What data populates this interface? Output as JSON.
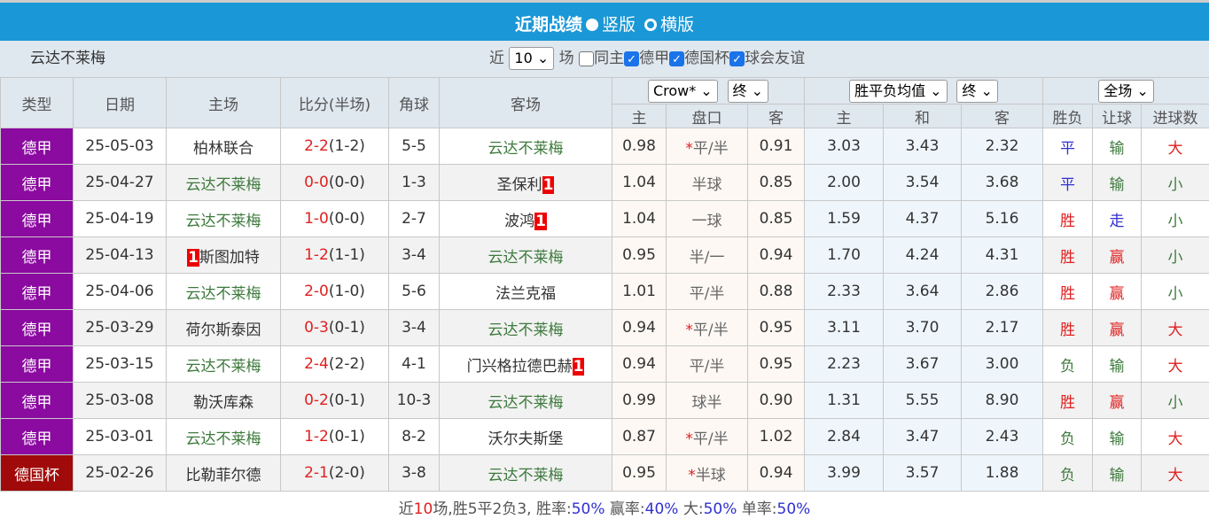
{
  "header": {
    "title": "近期战绩",
    "opt1": "竖版",
    "opt2": "横版"
  },
  "filter": {
    "team": "云达不莱梅",
    "near": "近",
    "count": "10",
    "unit": "场",
    "same_home": "同主",
    "leagues": [
      "德甲",
      "德国杯",
      "球会友谊"
    ]
  },
  "columns": {
    "type": "类型",
    "date": "日期",
    "home": "主场",
    "score": "比分(半场)",
    "corner": "角球",
    "away": "客场",
    "company": "Crow*",
    "final1": "终",
    "eu_sel": "胜平负均值",
    "final2": "终",
    "period": "全场",
    "ah_sub": [
      "主",
      "盘口",
      "客"
    ],
    "eu_sub": [
      "主",
      "和",
      "客"
    ],
    "res_sub": [
      "胜负",
      "让球",
      "进球数"
    ]
  },
  "rows": [
    {
      "type": "德甲",
      "date": "25-05-03",
      "home": "柏林联合",
      "hg": false,
      "hr": "",
      "ft": "2-2",
      "ht": "(1-2)",
      "corner": "5-5",
      "away": "云达不莱梅",
      "ag": true,
      "ar": "",
      "ah": [
        "0.98",
        "*",
        "平/半",
        "0.91"
      ],
      "eu": [
        "3.03",
        "3.43",
        "2.32"
      ],
      "res": [
        "平",
        "输",
        "大"
      ]
    },
    {
      "type": "德甲",
      "date": "25-04-27",
      "home": "云达不莱梅",
      "hg": true,
      "hr": "",
      "ft": "0-0",
      "ht": "(0-0)",
      "corner": "1-3",
      "away": "圣保利",
      "ag": false,
      "ar": "1",
      "ah": [
        "1.04",
        "",
        "半球",
        "0.85"
      ],
      "eu": [
        "2.00",
        "3.54",
        "3.68"
      ],
      "res": [
        "平",
        "输",
        "小"
      ]
    },
    {
      "type": "德甲",
      "date": "25-04-19",
      "home": "云达不莱梅",
      "hg": true,
      "hr": "",
      "ft": "1-0",
      "ht": "(0-0)",
      "corner": "2-7",
      "away": "波鸿",
      "ag": false,
      "ar": "1",
      "ah": [
        "1.04",
        "",
        "一球",
        "0.85"
      ],
      "eu": [
        "1.59",
        "4.37",
        "5.16"
      ],
      "res": [
        "胜",
        "走",
        "小"
      ]
    },
    {
      "type": "德甲",
      "date": "25-04-13",
      "home": "斯图加特",
      "hg": false,
      "hr": "1",
      "ft": "1-2",
      "ht": "(1-1)",
      "corner": "3-4",
      "away": "云达不莱梅",
      "ag": true,
      "ar": "",
      "ah": [
        "0.95",
        "",
        "半/一",
        "0.94"
      ],
      "eu": [
        "1.70",
        "4.24",
        "4.31"
      ],
      "res": [
        "胜",
        "赢",
        "小"
      ]
    },
    {
      "type": "德甲",
      "date": "25-04-06",
      "home": "云达不莱梅",
      "hg": true,
      "hr": "",
      "ft": "2-0",
      "ht": "(1-0)",
      "corner": "5-6",
      "away": "法兰克福",
      "ag": false,
      "ar": "",
      "ah": [
        "1.01",
        "",
        "平/半",
        "0.88"
      ],
      "eu": [
        "2.33",
        "3.64",
        "2.86"
      ],
      "res": [
        "胜",
        "赢",
        "小"
      ]
    },
    {
      "type": "德甲",
      "date": "25-03-29",
      "home": "荷尔斯泰因",
      "hg": false,
      "hr": "",
      "ft": "0-3",
      "ht": "(0-1)",
      "corner": "3-4",
      "away": "云达不莱梅",
      "ag": true,
      "ar": "",
      "ah": [
        "0.94",
        "*",
        "平/半",
        "0.95"
      ],
      "eu": [
        "3.11",
        "3.70",
        "2.17"
      ],
      "res": [
        "胜",
        "赢",
        "大"
      ]
    },
    {
      "type": "德甲",
      "date": "25-03-15",
      "home": "云达不莱梅",
      "hg": true,
      "hr": "",
      "ft": "2-4",
      "ht": "(2-2)",
      "corner": "4-1",
      "away": "门兴格拉德巴赫",
      "ag": false,
      "ar": "1",
      "ah": [
        "0.94",
        "",
        "平/半",
        "0.95"
      ],
      "eu": [
        "2.23",
        "3.67",
        "3.00"
      ],
      "res": [
        "负",
        "输",
        "大"
      ]
    },
    {
      "type": "德甲",
      "date": "25-03-08",
      "home": "勒沃库森",
      "hg": false,
      "hr": "",
      "ft": "0-2",
      "ht": "(0-1)",
      "corner": "10-3",
      "away": "云达不莱梅",
      "ag": true,
      "ar": "",
      "ah": [
        "0.99",
        "",
        "球半",
        "0.90"
      ],
      "eu": [
        "1.31",
        "5.55",
        "8.90"
      ],
      "res": [
        "胜",
        "赢",
        "小"
      ]
    },
    {
      "type": "德甲",
      "date": "25-03-01",
      "home": "云达不莱梅",
      "hg": true,
      "hr": "",
      "ft": "1-2",
      "ht": "(0-1)",
      "corner": "8-2",
      "away": "沃尔夫斯堡",
      "ag": false,
      "ar": "",
      "ah": [
        "0.87",
        "*",
        "平/半",
        "1.02"
      ],
      "eu": [
        "2.84",
        "3.47",
        "2.43"
      ],
      "res": [
        "负",
        "输",
        "大"
      ]
    },
    {
      "type": "德国杯",
      "date": "25-02-26",
      "home": "比勒菲尔德",
      "hg": false,
      "hr": "",
      "ft": "2-1",
      "ht": "(2-0)",
      "corner": "3-8",
      "away": "云达不莱梅",
      "ag": true,
      "ar": "",
      "ah": [
        "0.95",
        "*",
        "半球",
        "0.94"
      ],
      "eu": [
        "3.99",
        "3.57",
        "1.88"
      ],
      "res": [
        "负",
        "输",
        "大"
      ]
    }
  ],
  "summary": {
    "p1": "近",
    "n": "10",
    "p2": "场,胜5平2负3, 胜率:",
    "win": "50%",
    "p3": " 赢率:",
    "ying": "40%",
    "p4": " 大:",
    "big": "50%",
    "p5": " 单率:",
    "odd": "50%"
  },
  "colors": {
    "title_bg": "#1a97d6",
    "league": "#8b0aa0",
    "cup": "#a00a0a",
    "team": "#3d7a3d",
    "red": "#e02020",
    "blue": "#3030d0"
  }
}
